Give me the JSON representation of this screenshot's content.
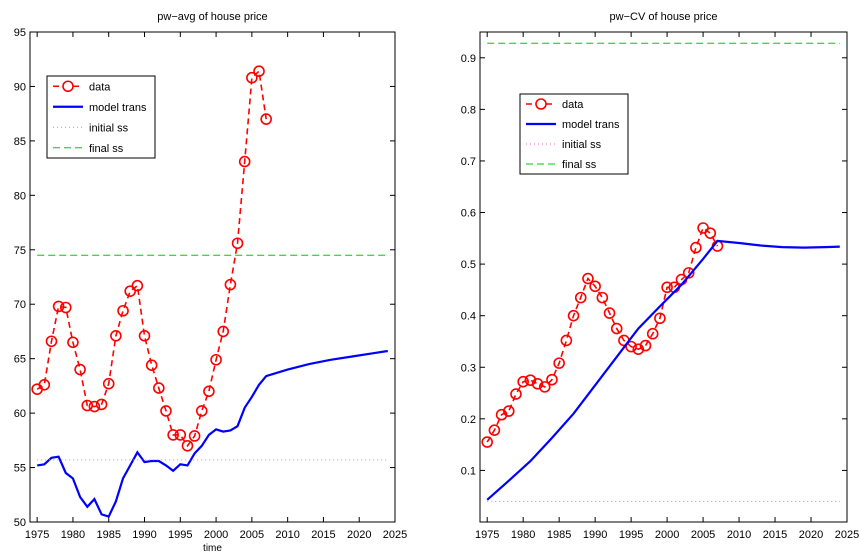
{
  "chart_data": [
    {
      "type": "line",
      "title": "pw−avg of house price",
      "xlabel": "time",
      "ylabel": "",
      "xlim": [
        1974,
        2025
      ],
      "ylim": [
        50,
        95
      ],
      "xticks": [
        1975,
        1980,
        1985,
        1990,
        1995,
        2000,
        2005,
        2010,
        2015,
        2020,
        2025
      ],
      "yticks": [
        50,
        55,
        60,
        65,
        70,
        75,
        80,
        85,
        90,
        95
      ],
      "grid": false,
      "legend": {
        "placement": "upper-left",
        "entries": [
          "data",
          "model trans",
          "initial ss",
          "final ss"
        ]
      },
      "series": [
        {
          "name": "data",
          "style": "dashed-circle-markers",
          "color": "#ff0000",
          "x": [
            1975,
            1976,
            1977,
            1978,
            1979,
            1980,
            1981,
            1982,
            1983,
            1984,
            1985,
            1986,
            1987,
            1988,
            1989,
            1990,
            1991,
            1992,
            1993,
            1994,
            1995,
            1996,
            1997,
            1998,
            1999,
            2000,
            2001,
            2002,
            2003,
            2004,
            2005,
            2006,
            2007
          ],
          "y": [
            62.2,
            62.6,
            66.6,
            69.8,
            69.7,
            66.5,
            64.0,
            60.7,
            60.6,
            60.8,
            62.7,
            67.1,
            69.4,
            71.2,
            71.7,
            67.1,
            64.4,
            62.3,
            60.2,
            58.0,
            58.0,
            57.0,
            57.9,
            60.2,
            62.0,
            64.9,
            67.5,
            71.8,
            75.6,
            83.1,
            90.8,
            91.4,
            87.0
          ]
        },
        {
          "name": "model trans",
          "style": "solid",
          "color": "#0000ff",
          "x": [
            1975,
            1976,
            1977,
            1978,
            1979,
            1980,
            1981,
            1982,
            1983,
            1984,
            1985,
            1986,
            1987,
            1988,
            1989,
            1990,
            1991,
            1992,
            1993,
            1994,
            1995,
            1996,
            1997,
            1998,
            1999,
            2000,
            2001,
            2002,
            2003,
            2004,
            2005,
            2006,
            2007,
            2010,
            2013,
            2016,
            2019,
            2022,
            2024
          ],
          "y": [
            55.2,
            55.3,
            55.9,
            56.0,
            54.5,
            54.0,
            52.3,
            51.4,
            52.1,
            50.7,
            50.5,
            51.9,
            54.0,
            55.2,
            56.4,
            55.5,
            55.6,
            55.6,
            55.2,
            54.7,
            55.3,
            55.2,
            56.3,
            57.0,
            58.0,
            58.5,
            58.3,
            58.4,
            58.8,
            60.5,
            61.5,
            62.6,
            63.4,
            64.0,
            64.5,
            64.9,
            65.2,
            65.5,
            65.7
          ]
        },
        {
          "name": "initial ss",
          "style": "dotted",
          "color": "#ff66cc",
          "x": [
            1975,
            2024
          ],
          "y": [
            55.7,
            55.7
          ]
        },
        {
          "name": "final ss",
          "style": "dash-dot",
          "color": "#00cc00",
          "x": [
            1975,
            2024
          ],
          "y": [
            74.5,
            74.5
          ]
        }
      ]
    },
    {
      "type": "line",
      "title": "pw−CV of house price",
      "xlabel": "",
      "ylabel": "",
      "xlim": [
        1974,
        2025
      ],
      "ylim": [
        0,
        0.95
      ],
      "xticks": [
        1975,
        1980,
        1985,
        1990,
        1995,
        2000,
        2005,
        2010,
        2015,
        2020,
        2025
      ],
      "yticks": [
        0.1,
        0.2,
        0.3,
        0.4,
        0.5,
        0.6,
        0.7,
        0.8,
        0.9
      ],
      "grid": false,
      "legend": {
        "placement": "upper-left",
        "entries": [
          "data",
          "model trans",
          "initial ss",
          "final ss"
        ]
      },
      "series": [
        {
          "name": "data",
          "style": "dashed-circle-markers",
          "color": "#ff0000",
          "x": [
            1975,
            1976,
            1977,
            1978,
            1979,
            1980,
            1981,
            1982,
            1983,
            1984,
            1985,
            1986,
            1987,
            1988,
            1989,
            1990,
            1991,
            1992,
            1993,
            1994,
            1995,
            1996,
            1997,
            1998,
            1999,
            2000,
            2001,
            2002,
            2003,
            2004,
            2005,
            2006,
            2007
          ],
          "y": [
            0.155,
            0.178,
            0.208,
            0.215,
            0.248,
            0.272,
            0.275,
            0.268,
            0.262,
            0.276,
            0.308,
            0.352,
            0.4,
            0.435,
            0.472,
            0.457,
            0.435,
            0.405,
            0.375,
            0.352,
            0.34,
            0.335,
            0.342,
            0.365,
            0.395,
            0.455,
            0.455,
            0.47,
            0.483,
            0.532,
            0.57,
            0.56,
            0.535
          ]
        },
        {
          "name": "model trans",
          "style": "solid",
          "color": "#0000ff",
          "x": [
            1975,
            1978,
            1981,
            1984,
            1987,
            1990,
            1993,
            1996,
            1999,
            2002,
            2005,
            2007,
            2010,
            2013,
            2016,
            2019,
            2022,
            2024
          ],
          "y": [
            0.043,
            0.08,
            0.118,
            0.163,
            0.21,
            0.265,
            0.32,
            0.375,
            0.418,
            0.46,
            0.51,
            0.545,
            0.541,
            0.536,
            0.533,
            0.532,
            0.533,
            0.534
          ]
        },
        {
          "name": "initial ss",
          "style": "dotted",
          "color": "#ff66cc",
          "x": [
            1975,
            2024
          ],
          "y": [
            0.04,
            0.04
          ]
        },
        {
          "name": "final ss",
          "style": "dash-dot",
          "color": "#00cc00",
          "x": [
            1975,
            2024
          ],
          "y": [
            0.928,
            0.928
          ]
        }
      ]
    }
  ]
}
